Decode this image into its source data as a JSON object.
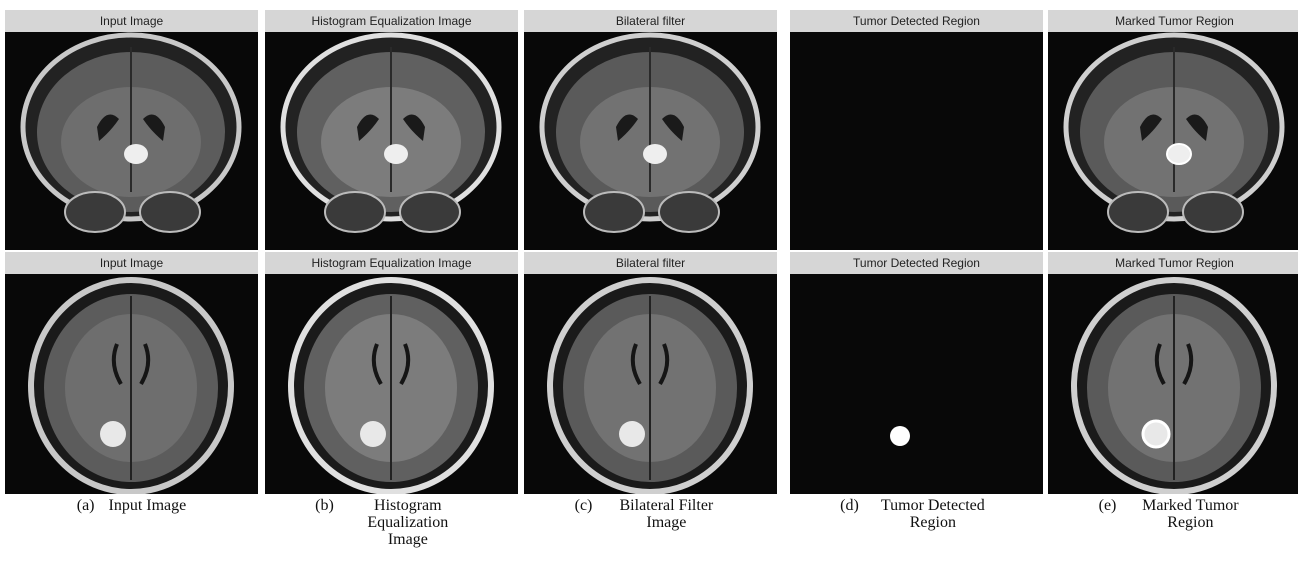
{
  "figure": {
    "rows": [
      {
        "panels": [
          {
            "title": "Input Image"
          },
          {
            "title": "Histogram Equalization Image"
          },
          {
            "title": "Bilateral filter"
          },
          {
            "title": "Tumor Detected Region"
          },
          {
            "title": "Marked Tumor Region"
          }
        ]
      },
      {
        "panels": [
          {
            "title": "Input Image"
          },
          {
            "title": "Histogram Equalization Image"
          },
          {
            "title": "Bilateral filter"
          },
          {
            "title": "Tumor Detected Region"
          },
          {
            "title": "Marked Tumor Region"
          }
        ]
      }
    ],
    "captions": [
      {
        "label": "(a)",
        "text": "Input Image"
      },
      {
        "label": "(b)",
        "text": "Histogram Equalization Image"
      },
      {
        "label": "(c)",
        "text": "Bilateral Filter Image"
      },
      {
        "label": "(d)",
        "text": "Tumor Detected Region"
      },
      {
        "label": "(e)",
        "text": "Marked Tumor Region"
      }
    ]
  }
}
